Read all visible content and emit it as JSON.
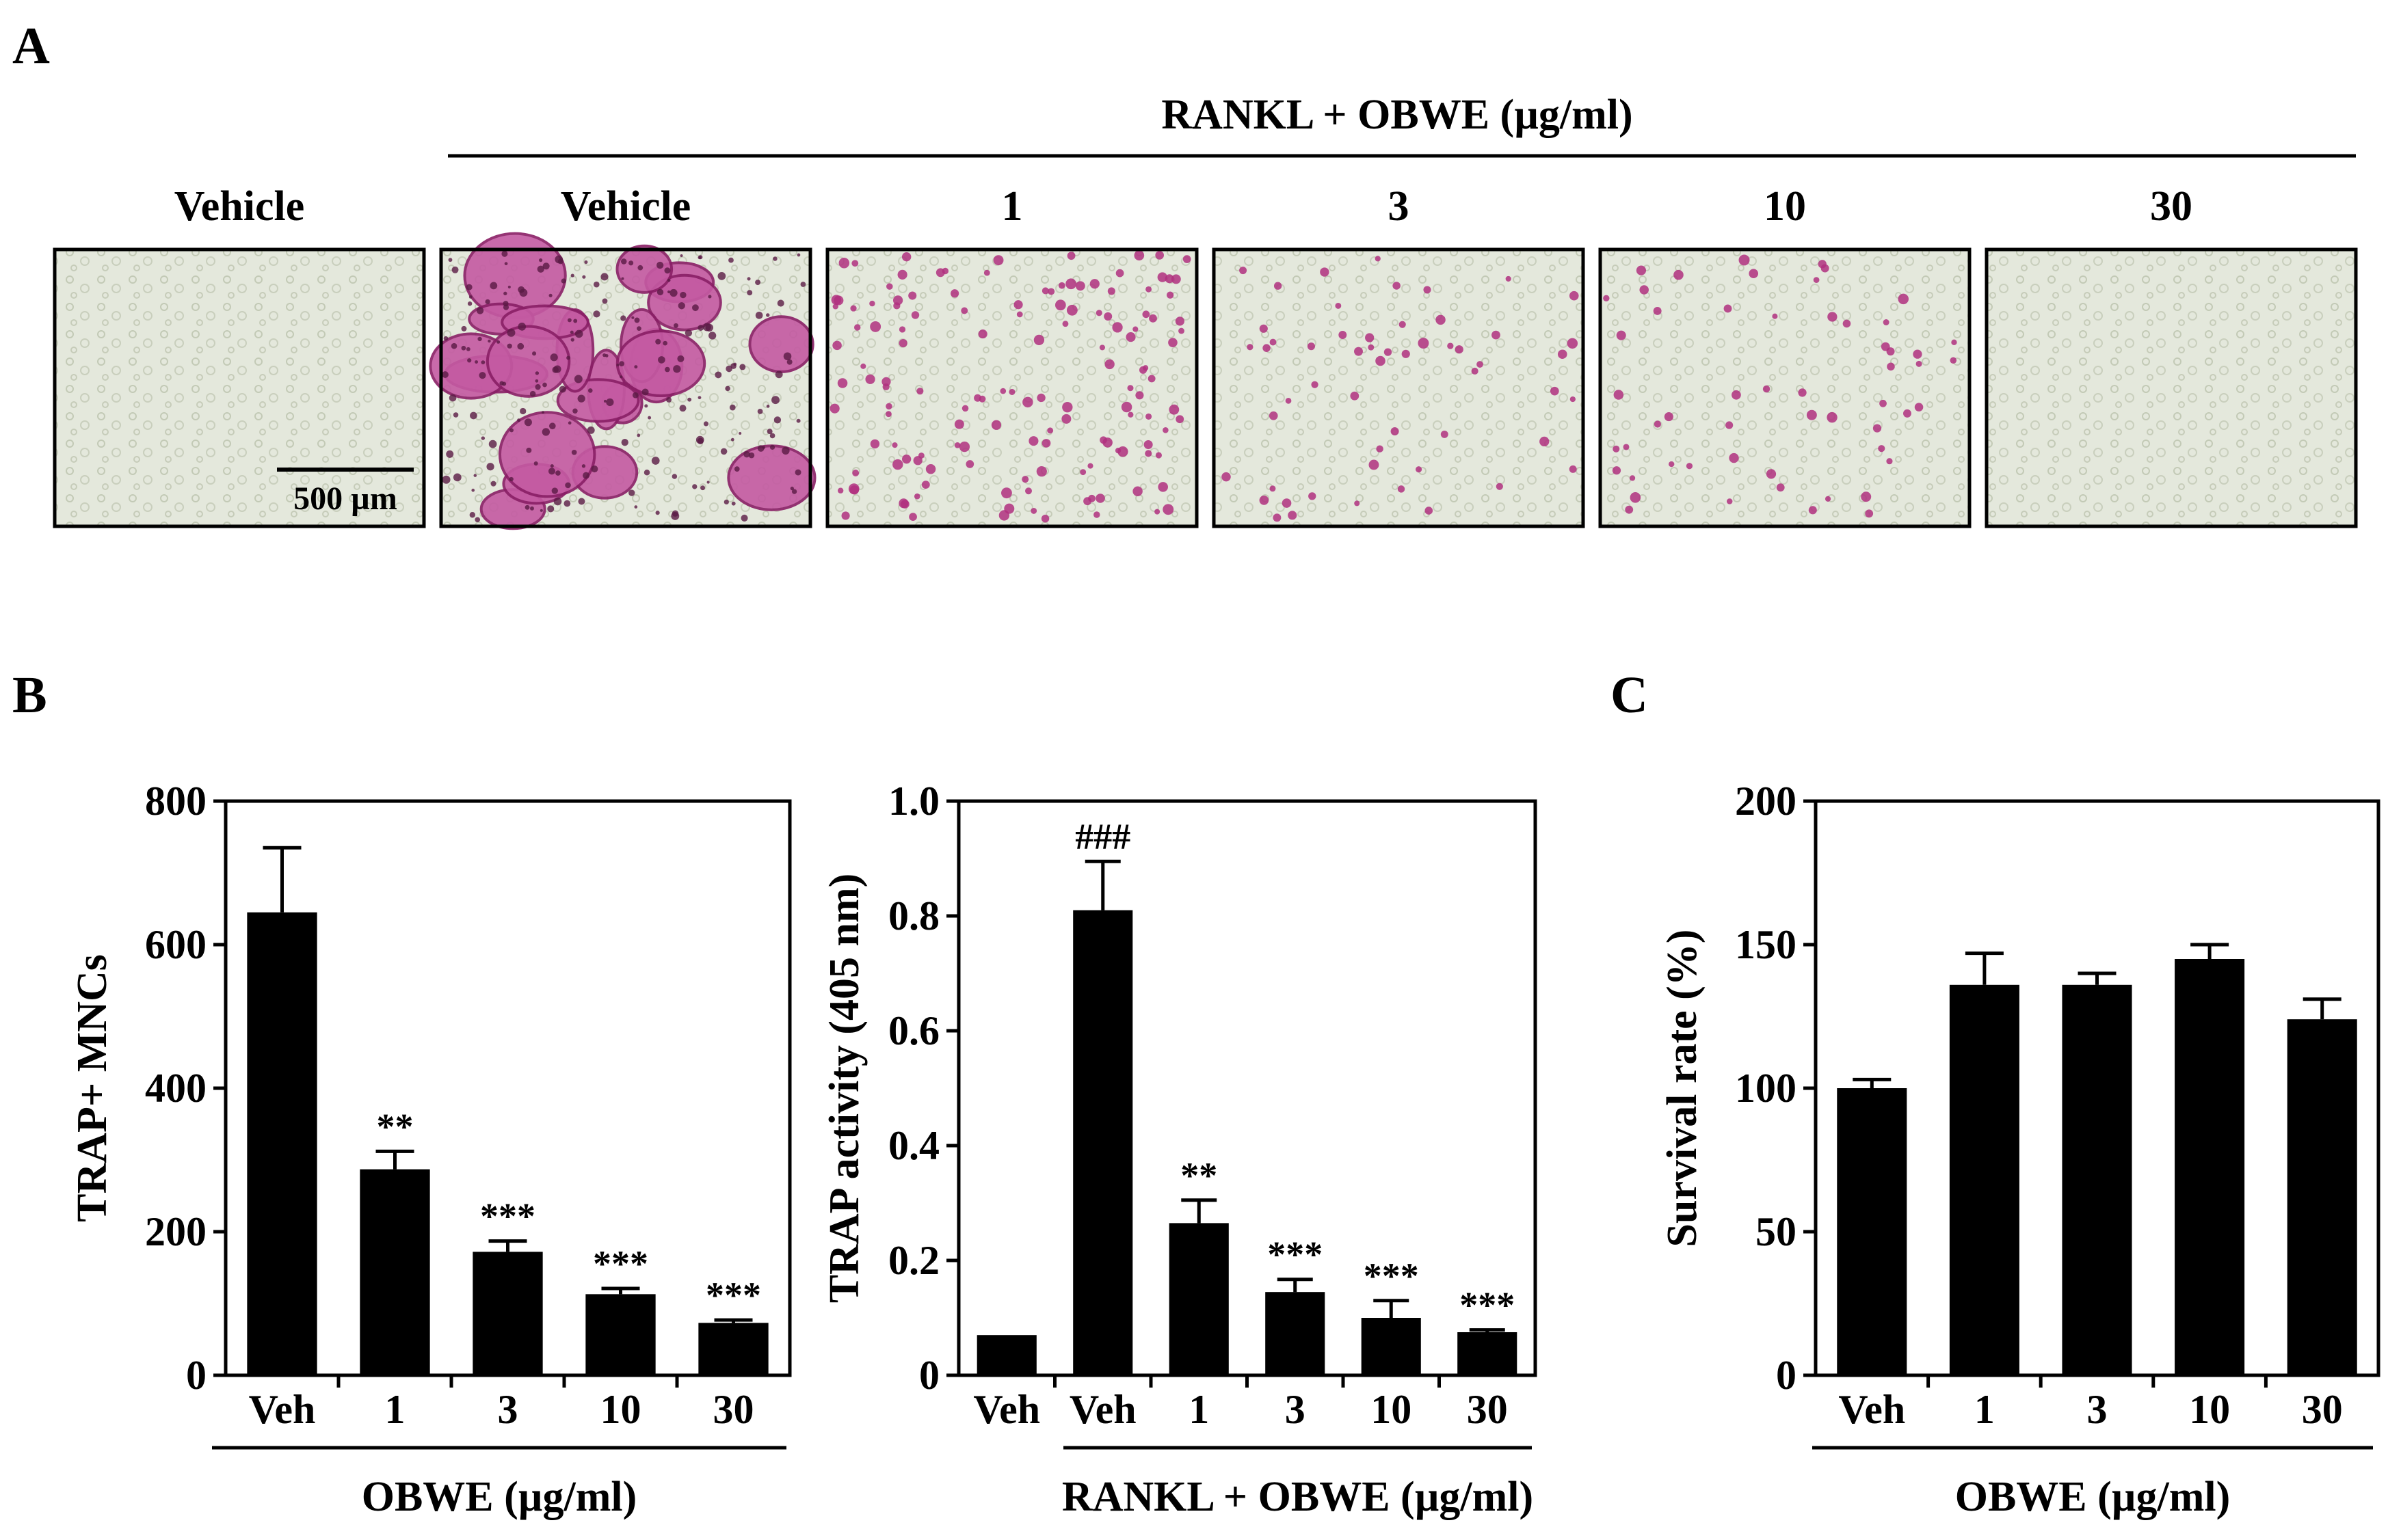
{
  "panel_a": {
    "letter": "A",
    "group_label": "RANKL + OBWE (µg/ml)",
    "scale_bar": "500 µm",
    "images": [
      {
        "label": "Vehicle",
        "stain": "none"
      },
      {
        "label": "Vehicle",
        "stain": "heavy"
      },
      {
        "label": "1",
        "stain": "medium"
      },
      {
        "label": "3",
        "stain": "light"
      },
      {
        "label": "10",
        "stain": "light"
      },
      {
        "label": "30",
        "stain": "none"
      }
    ]
  },
  "panel_b_letter": "B",
  "panel_c_letter": "C",
  "colors": {
    "bar": "#000000",
    "trap_stain": "#b0307f",
    "micrograph_bg": "#e4e8dc"
  },
  "chart_data": [
    {
      "type": "bar",
      "categories": [
        "Veh",
        "1",
        "3",
        "10",
        "30"
      ],
      "values": [
        645,
        287,
        172,
        113,
        73
      ],
      "errors": [
        90,
        25,
        15,
        8,
        4
      ],
      "annotations": [
        "",
        "**",
        "***",
        "***",
        "***"
      ],
      "ylabel": "TRAP+ MNCs",
      "xlabel": "OBWE (µg/ml)",
      "ylim": [
        0,
        800
      ],
      "yticks": [
        0,
        200,
        400,
        600,
        800
      ]
    },
    {
      "type": "bar",
      "categories": [
        "Veh",
        "Veh",
        "1",
        "3",
        "10",
        "30"
      ],
      "values": [
        0.07,
        0.81,
        0.265,
        0.145,
        0.1,
        0.075
      ],
      "errors": [
        0,
        0.085,
        0.04,
        0.022,
        0.03,
        0.004
      ],
      "annotations": [
        "",
        "###",
        "**",
        "***",
        "***",
        "***"
      ],
      "ylabel": "TRAP activity (405 nm)",
      "xlabel": "RANKL + OBWE (µg/ml)",
      "ylim": [
        0,
        1.0
      ],
      "yticks": [
        "0",
        "0.2",
        "0.4",
        "0.6",
        "0.8",
        "1.0"
      ]
    },
    {
      "type": "bar",
      "categories": [
        "Veh",
        "1",
        "3",
        "10",
        "30"
      ],
      "values": [
        100,
        136,
        136,
        145,
        124
      ],
      "errors": [
        3,
        11,
        4,
        5,
        7
      ],
      "annotations": [
        "",
        "",
        "",
        "",
        ""
      ],
      "ylabel": "Survival rate (%)",
      "xlabel": "OBWE (µg/ml)",
      "ylim": [
        0,
        200
      ],
      "yticks": [
        0,
        50,
        100,
        150,
        200
      ]
    }
  ]
}
